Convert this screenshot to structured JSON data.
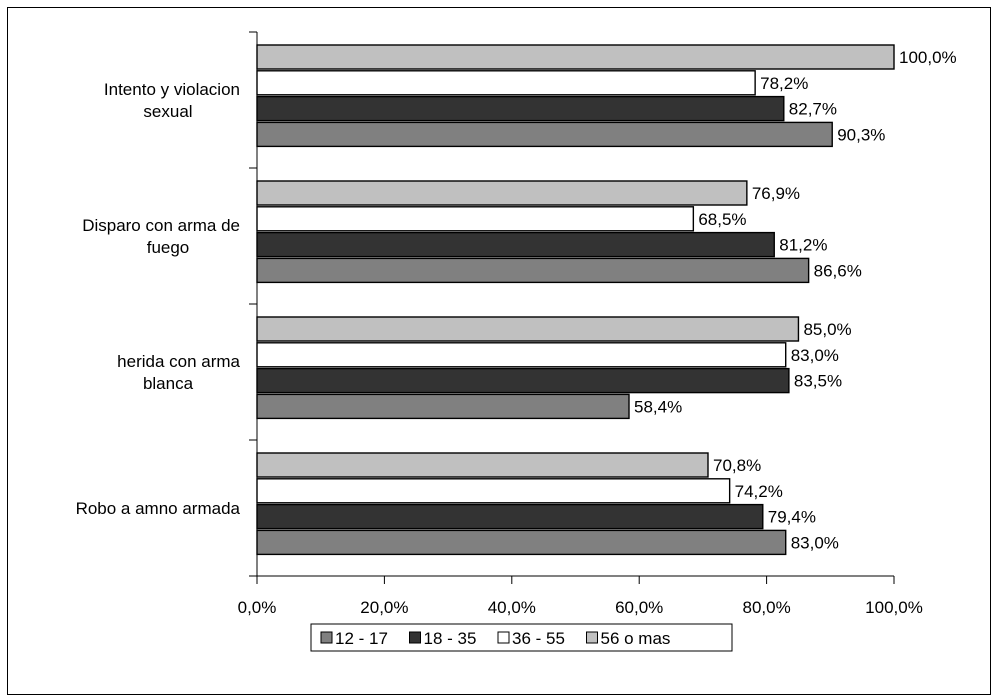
{
  "chart_data": {
    "type": "bar",
    "orientation": "horizontal",
    "categories": [
      [
        "Intento y violacion",
        "sexual"
      ],
      [
        "Disparo con arma de",
        "fuego"
      ],
      [
        "herida con arma",
        "blanca"
      ],
      [
        "Robo a amno armada"
      ]
    ],
    "series": [
      {
        "name": "56 o mas",
        "color": "#c0c0c0",
        "values": [
          100.0,
          76.9,
          85.0,
          70.8
        ],
        "labels": [
          "100,0%",
          "76,9%",
          "85,0%",
          "70,8%"
        ]
      },
      {
        "name": "36 - 55",
        "color": "#ffffff",
        "values": [
          78.2,
          68.5,
          83.0,
          74.2
        ],
        "labels": [
          "78,2%",
          "68,5%",
          "83,0%",
          "74,2%"
        ]
      },
      {
        "name": "18 - 35",
        "color": "#333333",
        "values": [
          82.7,
          81.2,
          83.5,
          79.4
        ],
        "labels": [
          "82,7%",
          "81,2%",
          "83,5%",
          "79,4%"
        ]
      },
      {
        "name": "12 - 17",
        "color": "#808080",
        "values": [
          90.3,
          86.6,
          58.4,
          83.0
        ],
        "labels": [
          "90,3%",
          "86,6%",
          "58,4%",
          "83,0%"
        ]
      }
    ],
    "legend_order": [
      "12 - 17",
      "18 - 35",
      "36 - 55",
      "56 o mas"
    ],
    "xticks": [
      "0,0%",
      "20,0%",
      "40,0%",
      "60,0%",
      "80,0%",
      "100,0%"
    ],
    "xlim": [
      0,
      100
    ],
    "grid": false,
    "legend_position": "bottom"
  }
}
